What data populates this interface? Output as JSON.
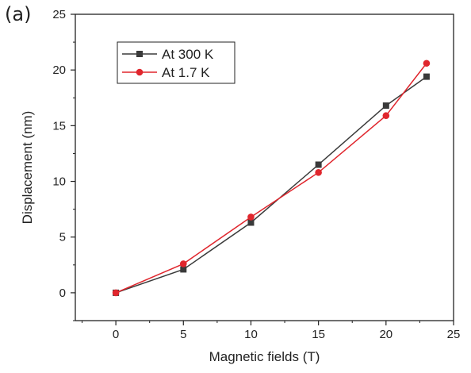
{
  "panel_label": "(a)",
  "chart_data": {
    "type": "line",
    "xlabel": "Magnetic fields (T)",
    "ylabel": "Displacement (nm)",
    "xlim": [
      -3,
      25
    ],
    "ylim": [
      -2.5,
      25
    ],
    "xticks": [
      0,
      5,
      10,
      15,
      20,
      25
    ],
    "yticks": [
      0,
      5,
      10,
      15,
      20,
      25
    ],
    "legend_position": "top-left",
    "grid": false,
    "series": [
      {
        "name": "At 300 K",
        "color": "#3a3a3a",
        "marker": "square",
        "x": [
          0,
          5,
          10,
          15,
          20,
          23
        ],
        "y": [
          0,
          2.1,
          6.3,
          11.5,
          16.8,
          19.4
        ]
      },
      {
        "name": "At 1.7 K",
        "color": "#e0262d",
        "marker": "circle",
        "x": [
          0,
          5,
          10,
          15,
          20,
          23
        ],
        "y": [
          0,
          2.6,
          6.8,
          10.8,
          15.9,
          20.6
        ]
      }
    ]
  }
}
